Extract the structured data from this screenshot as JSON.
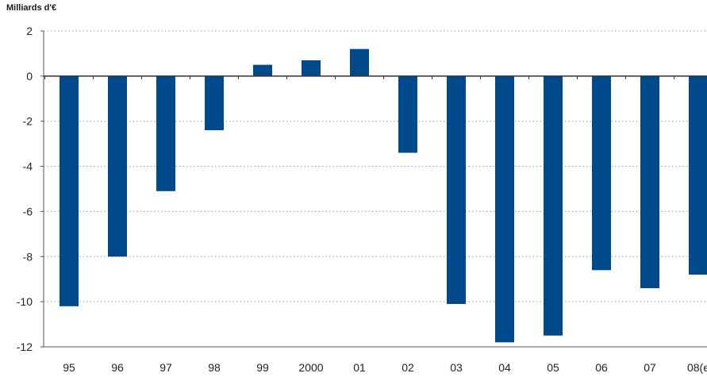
{
  "chart_data": {
    "type": "bar",
    "title": "",
    "unit_label": "Milliards d'€",
    "xlabel": "",
    "ylabel": "",
    "categories": [
      "95",
      "96",
      "97",
      "98",
      "99",
      "2000",
      "01",
      "02",
      "03",
      "04",
      "05",
      "06",
      "07",
      "08(e"
    ],
    "series": [
      {
        "values": [
          -10.2,
          -8.0,
          -5.1,
          -2.4,
          0.5,
          0.7,
          1.2,
          -3.4,
          -10.1,
          -11.8,
          -11.5,
          -8.6,
          -9.4,
          -8.8
        ],
        "color": "#004a8c"
      }
    ],
    "ylim": [
      -12,
      2
    ],
    "yticks": [
      2,
      0,
      -2,
      -4,
      -6,
      -8,
      -10,
      -12
    ],
    "ytick_labels": [
      "2",
      "0",
      "-2",
      "-4",
      "-6",
      "-8",
      "-10",
      "-12"
    ],
    "grid": true,
    "grid_style": "dotted",
    "legend": "none"
  }
}
